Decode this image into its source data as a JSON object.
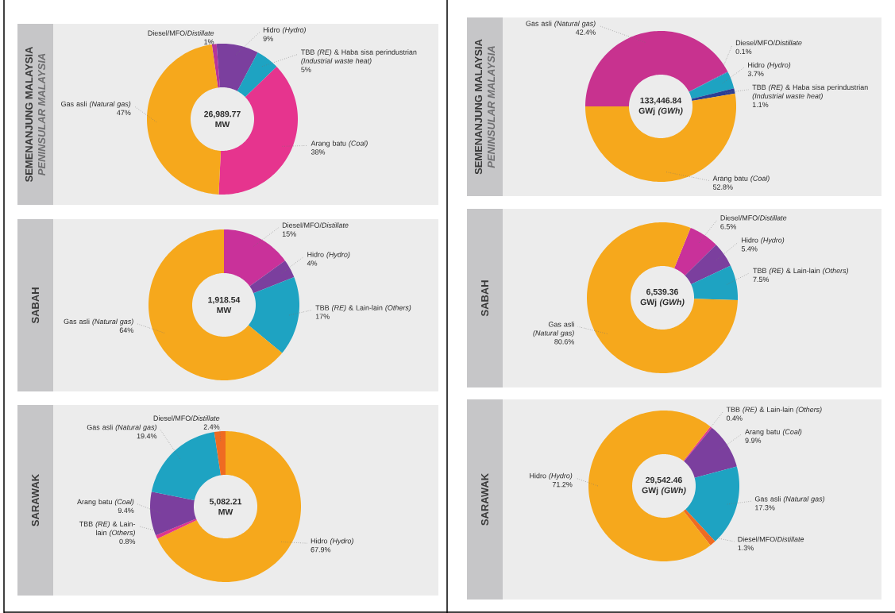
{
  "chart_data": [
    {
      "type": "donut",
      "title": "SEMENANJUNG MALAYSIA",
      "subtitle": "PENINSULAR MALAYSIA",
      "annotations": [
        "26,989.77 MW"
      ],
      "categories": [
        "Diesel/MFO/*Distillate*",
        "Hidro *(Hydro)*",
        "TBB *(RE)* & Haba sisa perindustrian *(Industrial waste heat)*",
        "Arang batu *(Coal)*",
        "Gas asli *(Natural gas)*"
      ],
      "values": [
        1,
        9,
        5,
        38,
        47
      ],
      "value_labels": [
        "1%",
        "9%",
        "5%",
        "38%",
        "47%"
      ],
      "colors": [
        "#b8349a",
        "#7b3f9e",
        "#1ea3c2",
        "#e6348e",
        "#f6a81c"
      ]
    },
    {
      "type": "donut",
      "title": "SEMENANJUNG MALAYSIA",
      "subtitle": "PENINSULAR MALAYSIA",
      "annotations": [
        "133,446.84 GWj *(GWh)*"
      ],
      "categories": [
        "Gas asli *(Natural gas)*",
        "Diesel/MFO/*Distillate*",
        "Hidro *(Hydro)*",
        "TBB *(RE)* & Haba sisa perindustrian *(Industrial waste heat)*",
        "Arang batu *(Coal)*"
      ],
      "values": [
        42.4,
        0.1,
        3.7,
        1.1,
        52.8
      ],
      "value_labels": [
        "42.4%",
        "0.1%",
        "3.7%",
        "1.1%",
        "52.8%"
      ],
      "colors": [
        "#c8328f",
        "#7b3f9e",
        "#1ea3c2",
        "#2c3e94",
        "#f6a81c"
      ]
    },
    {
      "type": "donut",
      "title": "SABAH",
      "annotations": [
        "1,918.54 MW"
      ],
      "categories": [
        "Diesel/MFO/*Distillate*",
        "Hidro *(Hydro)*",
        "TBB *(RE)* & Lain-lain *(Others)*",
        "Gas asli *(Natural gas)*"
      ],
      "values": [
        15,
        4,
        17,
        64
      ],
      "value_labels": [
        "15%",
        "4%",
        "17%",
        "64%"
      ],
      "colors": [
        "#c9319a",
        "#7b3f9e",
        "#1ea3c2",
        "#f6a81c"
      ]
    },
    {
      "type": "donut",
      "title": "SABAH",
      "annotations": [
        "6,539.36 GWj *(GWh)*"
      ],
      "categories": [
        "Diesel/MFO/*Distillate*",
        "Hidro *(Hydro)*",
        "TBB *(RE)* & Lain-lain *(Others)*",
        "Gas asli *(Natural gas)*"
      ],
      "values": [
        6.5,
        5.4,
        7.5,
        80.6
      ],
      "value_labels": [
        "6.5%",
        "5.4%",
        "7.5%",
        "80.6%"
      ],
      "colors": [
        "#c9319a",
        "#7b3f9e",
        "#1ea3c2",
        "#f6a81c"
      ]
    },
    {
      "type": "donut",
      "title": "SARAWAK",
      "annotations": [
        "5,082.21 MW"
      ],
      "categories": [
        "Hidro *(Hydro)*",
        "TBB *(RE)* & Lain-lain *(Others)*",
        "Arang batu *(Coal)*",
        "Gas asli *(Natural gas)*",
        "Diesel/MFO/*Distillate*"
      ],
      "values": [
        67.9,
        0.8,
        9.4,
        19.4,
        2.4
      ],
      "value_labels": [
        "67.9%",
        "0.8%",
        "9.4%",
        "19.4%",
        "2.4%"
      ],
      "colors": [
        "#f6a81c",
        "#e0358f",
        "#7b3f9e",
        "#1ea3c2",
        "#ef6b22"
      ]
    },
    {
      "type": "donut",
      "title": "SARAWAK",
      "annotations": [
        "29,542.46 GWj *(GWh)*"
      ],
      "categories": [
        "TBB *(RE)* & Lain-lain *(Others)*",
        "Arang batu *(Coal)*",
        "Gas asli *(Natural gas)*",
        "Diesel/MFO/*Distillate*",
        "Hidro *(Hydro)*"
      ],
      "values": [
        0.4,
        9.9,
        17.3,
        1.3,
        71.2
      ],
      "value_labels": [
        "0.4%",
        "9.9%",
        "17.3%",
        "1.3%",
        "71.2%"
      ],
      "colors": [
        "#e8358f",
        "#7b3f9e",
        "#1ea3c2",
        "#ef6b22",
        "#f6a81c"
      ]
    }
  ]
}
